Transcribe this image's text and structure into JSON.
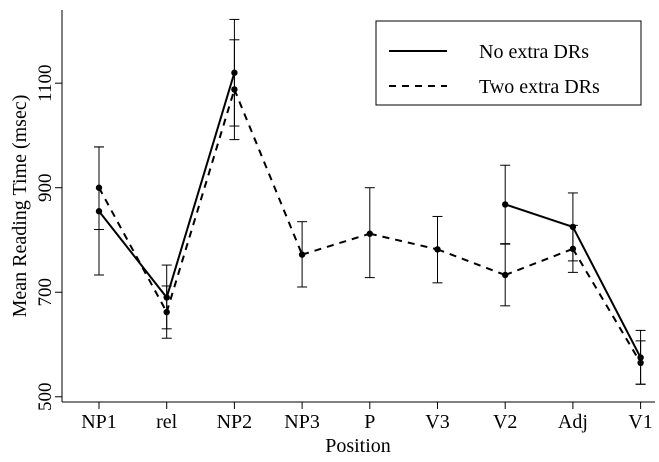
{
  "chart_data": {
    "type": "line",
    "title": "",
    "xlabel": "Position",
    "ylabel": "Mean Reading Time (msec)",
    "categories": [
      "NP1",
      "rel",
      "NP2",
      "NP3",
      "P",
      "V3",
      "V2",
      "Adj",
      "V1"
    ],
    "ylim": [
      490,
      1240
    ],
    "yticks": [
      500,
      700,
      900,
      1100
    ],
    "grid": false,
    "legend_position": "top-right",
    "series": [
      {
        "name": "No extra DRs",
        "style": "solid",
        "values": [
          855,
          690,
          1120,
          null,
          null,
          null,
          868,
          825,
          575
        ],
        "err_low": [
          733,
          630,
          1018,
          null,
          null,
          null,
          793,
          760,
          524
        ],
        "err_high": [
          978,
          752,
          1222,
          null,
          null,
          null,
          943,
          890,
          627
        ]
      },
      {
        "name": "Two extra DRs",
        "style": "dashed",
        "values": [
          900,
          662,
          1088,
          772,
          812,
          782,
          733,
          783,
          565
        ],
        "err_low": [
          820,
          612,
          992,
          710,
          728,
          718,
          674,
          738,
          524
        ],
        "err_high": [
          978,
          712,
          1183,
          835,
          900,
          845,
          792,
          828,
          607
        ]
      }
    ]
  }
}
